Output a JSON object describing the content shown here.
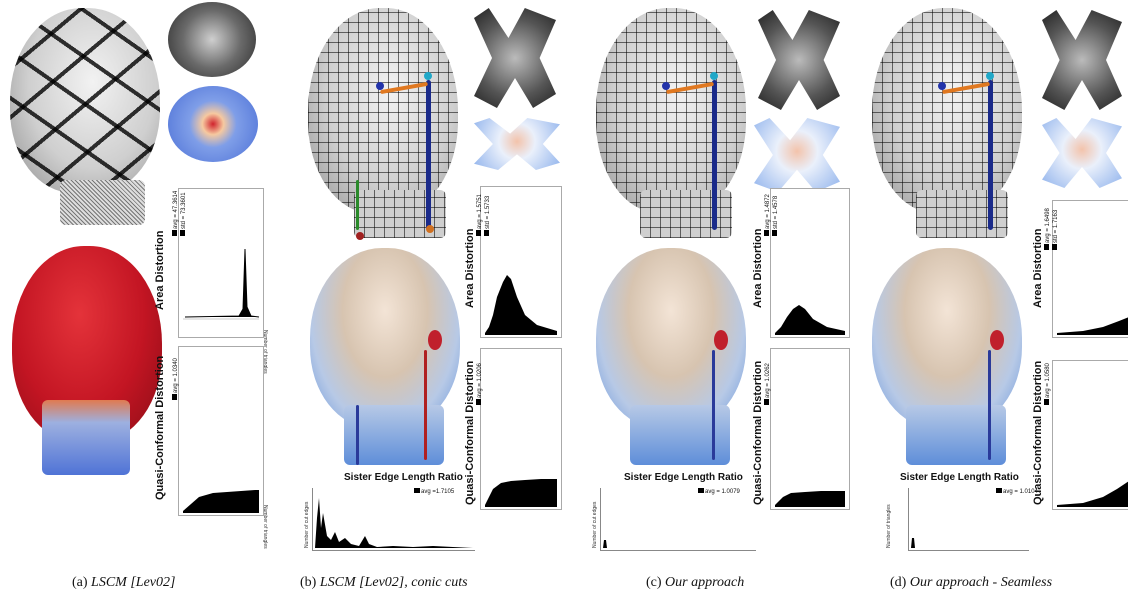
{
  "panels": [
    {
      "id": "a",
      "area": {
        "title": "Area Distortion",
        "avg": "avg = 47.3614",
        "std": "std = 73.3601"
      },
      "conformal": {
        "title": "Quasi-Conformal Distortion",
        "avg": "avg = 1.0340"
      },
      "hist_ylabel": "Number of triangles",
      "caption": {
        "tag": "(a)",
        "text": "LSCM [Lev02]"
      }
    },
    {
      "id": "b",
      "area": {
        "title": "Area Distortion",
        "avg": "avg = 1.5751",
        "std": "std = 1.5733"
      },
      "conformal": {
        "title": "Quasi-Conformal Distortion",
        "avg": "avg = 1.0206"
      },
      "sister": {
        "title": "Sister Edge Length Ratio",
        "avg": "avg =1.7105",
        "ylabel": "Number of cut edges"
      },
      "hist_ylabel": "Number of triangles",
      "caption": {
        "tag": "(b)",
        "text": "LSCM [Lev02], conic cuts"
      }
    },
    {
      "id": "c",
      "area": {
        "title": "Area Distortion",
        "avg": "avg = 1.4872",
        "std": "std = 1.4578"
      },
      "conformal": {
        "title": "Quasi-Conformal Distortion",
        "avg": "avg = 1.0262"
      },
      "sister": {
        "title": "Sister Edge Length Ratio",
        "avg": "avg = 1.0079",
        "ylabel": "Number of cut edges"
      },
      "hist_ylabel": "Number of triangles",
      "caption": {
        "tag": "(c)",
        "text": "Our approach"
      }
    },
    {
      "id": "d",
      "area": {
        "title": "Area Distortion",
        "avg": "avg = 1.6498",
        "std": "std = 1.7163"
      },
      "conformal": {
        "title": "Quasi-Conformal Distortion",
        "avg": "avg = 1.0580"
      },
      "sister": {
        "title": "Sister Edge Length Ratio",
        "avg": "avg = 1.0104",
        "ylabel": "Number of triangles"
      },
      "hist_ylabel": "Number of triangles",
      "caption": {
        "tag": "(d)",
        "text": "Our approach - Seamless"
      }
    }
  ]
}
